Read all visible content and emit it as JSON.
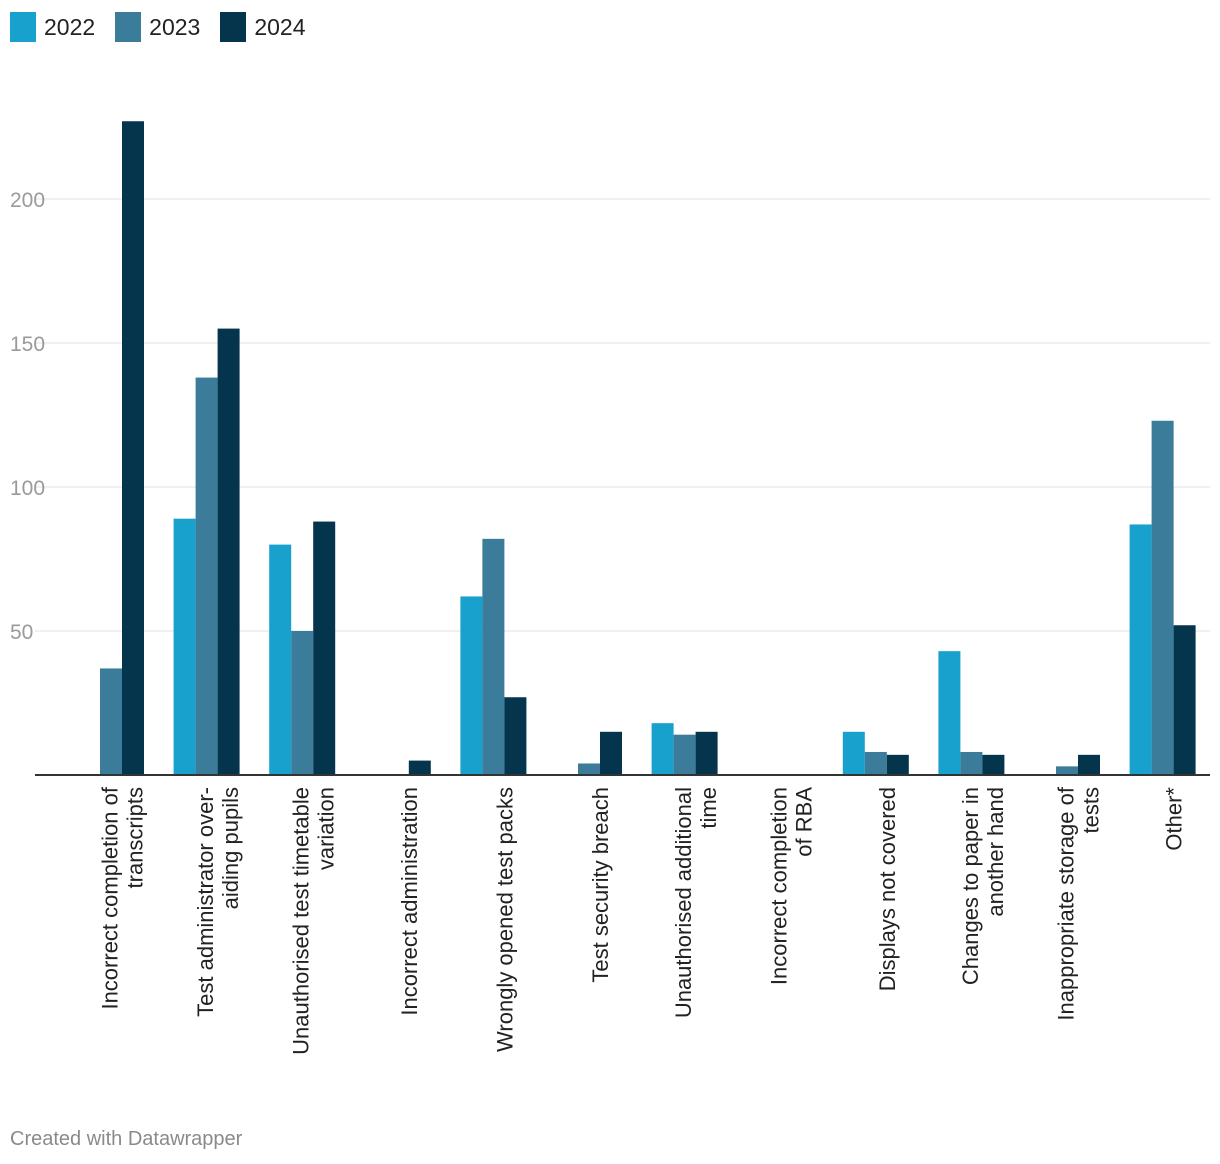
{
  "chart_data": {
    "type": "bar",
    "title": "",
    "xlabel": "",
    "ylabel": "",
    "ylim": [
      0,
      230
    ],
    "yticks": [
      50,
      100,
      150,
      200
    ],
    "grid": true,
    "legend_position": "top-left",
    "categories": [
      [
        "Incorrect completion of",
        "transcripts"
      ],
      [
        "Test administrator over-",
        "aiding pupils"
      ],
      [
        "Unauthorised test timetable",
        "variation"
      ],
      [
        "Incorrect administration"
      ],
      [
        "Wrongly opened test packs"
      ],
      [
        "Test security breach"
      ],
      [
        "Unauthorised additional",
        "time"
      ],
      [
        "Incorrect completion",
        "of RBA"
      ],
      [
        "Displays not covered"
      ],
      [
        "Changes to paper in",
        "another hand"
      ],
      [
        "Inappropriate storage of",
        "tests"
      ],
      [
        "Other*"
      ]
    ],
    "series": [
      {
        "name": "2022",
        "color": "#18a1cd",
        "values": [
          0,
          89,
          80,
          0,
          62,
          0,
          18,
          0,
          15,
          43,
          0,
          87
        ]
      },
      {
        "name": "2023",
        "color": "#3a7c99",
        "values": [
          37,
          138,
          50,
          0,
          82,
          4,
          14,
          0,
          8,
          8,
          3,
          123
        ]
      },
      {
        "name": "2024",
        "color": "#05344d",
        "values": [
          227,
          155,
          88,
          5,
          27,
          15,
          15,
          0,
          7,
          7,
          7,
          52
        ]
      }
    ]
  },
  "footer": {
    "credit": "Created with Datawrapper"
  }
}
